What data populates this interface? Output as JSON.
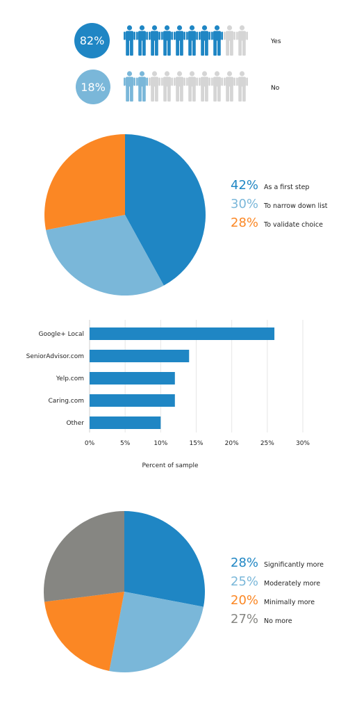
{
  "survey": {
    "answers": [
      {
        "percent": "82%",
        "label": "Yes",
        "people_filled": 8,
        "people_total": 10,
        "color": "#1f86c4",
        "light": "#d5d5d5"
      },
      {
        "percent": "18%",
        "label": "No",
        "people_filled": 2,
        "people_total": 10,
        "color": "#7ab7d9",
        "light": "#d5d5d5"
      }
    ]
  },
  "chart_data": [
    {
      "type": "pie",
      "slices": [
        {
          "label": "As a first step",
          "value": 42,
          "display": "42%",
          "color": "#1f86c4"
        },
        {
          "label": "To narrow down list",
          "value": 30,
          "display": "30%",
          "color": "#7ab7d9"
        },
        {
          "label": "To validate choice",
          "value": 28,
          "display": "28%",
          "color": "#fb8724"
        }
      ],
      "legend": "right"
    },
    {
      "type": "bar",
      "orientation": "horizontal",
      "categories": [
        "Google+ Local",
        "SeniorAdvisor.com",
        "Yelp.com",
        "Caring.com",
        "Other"
      ],
      "values": [
        26,
        14,
        12,
        12,
        10
      ],
      "xlabel": "Percent of sample",
      "xlim": [
        0,
        30
      ],
      "ticks": [
        "0%",
        "5%",
        "10%",
        "15%",
        "20%",
        "25%",
        "30%"
      ],
      "grid": true,
      "color": "#1f86c4"
    },
    {
      "type": "pie",
      "slices": [
        {
          "label": "Significantly more",
          "value": 28,
          "display": "28%",
          "color": "#1f86c4"
        },
        {
          "label": "Moderately more",
          "value": 25,
          "display": "25%",
          "color": "#7ab7d9"
        },
        {
          "label": "Minimally more",
          "value": 20,
          "display": "20%",
          "color": "#fb8724"
        },
        {
          "label": "No more",
          "value": 27,
          "display": "27%",
          "color": "#868682"
        }
      ],
      "legend": "right"
    }
  ]
}
